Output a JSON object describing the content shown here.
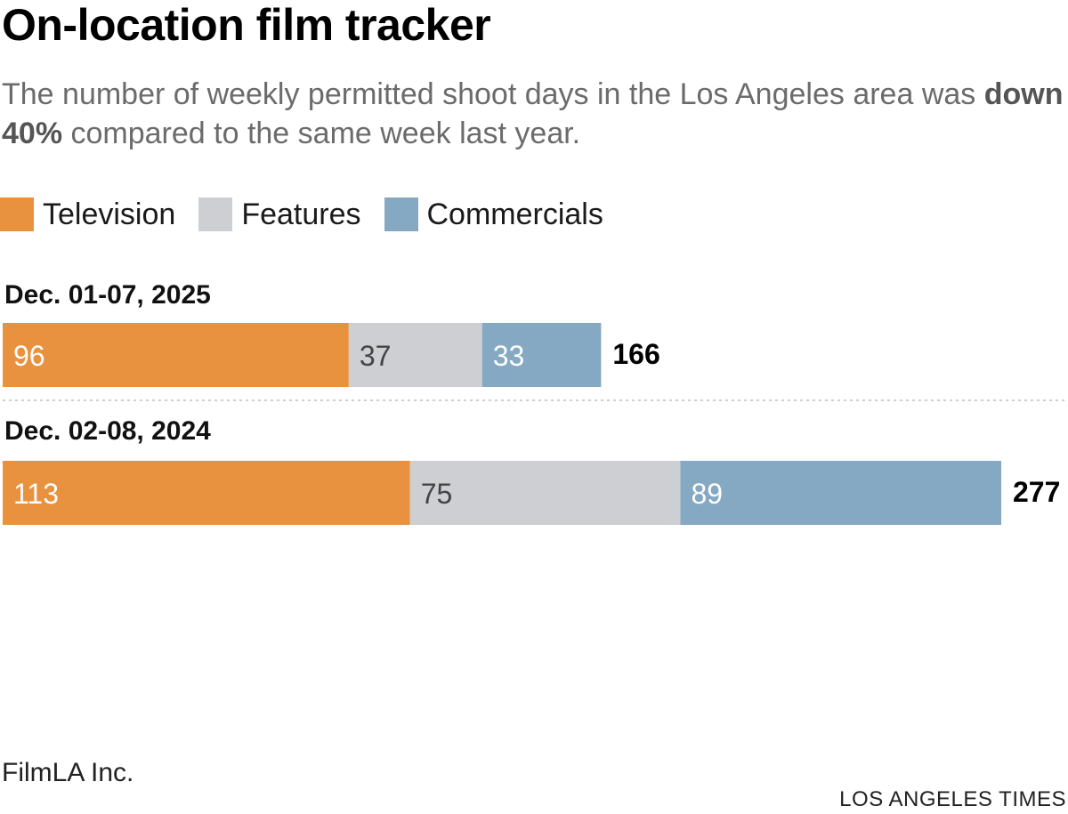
{
  "title": "On-location film tracker",
  "subtitle": {
    "before": "The number of weekly permitted shoot days in the Los Angeles area was ",
    "emphasis": "down 40%",
    "after": " compared to the same week last year."
  },
  "colors": {
    "television": "#e8923f",
    "features": "#cdcfd3",
    "commercials": "#85a8c3"
  },
  "chart_data": {
    "type": "bar",
    "orientation": "horizontal",
    "stacked": true,
    "title": "On-location film tracker",
    "legend": [
      "Television",
      "Features",
      "Commercials"
    ],
    "legend_position": "top-left",
    "categories": [
      "Dec. 01-07, 2025",
      "Dec. 02-08, 2024"
    ],
    "series": [
      {
        "name": "Television",
        "values": [
          96,
          113
        ]
      },
      {
        "name": "Features",
        "values": [
          37,
          75
        ]
      },
      {
        "name": "Commercials",
        "values": [
          33,
          89
        ]
      }
    ],
    "totals": [
      166,
      277
    ],
    "xlim": [
      0,
      277
    ],
    "grid": false
  },
  "footer": {
    "source": "FilmLA Inc.",
    "credit": "LOS ANGELES TIMES"
  }
}
